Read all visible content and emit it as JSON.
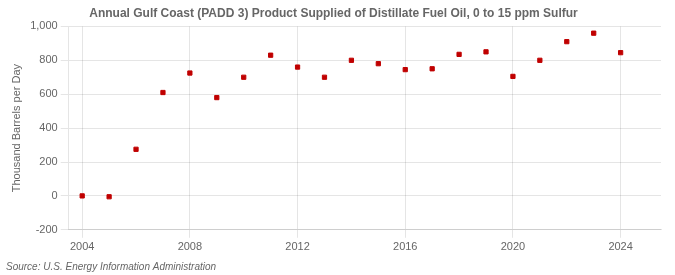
{
  "chart_data": {
    "type": "scatter",
    "title": "Annual Gulf Coast (PADD 3) Product Supplied of Distillate Fuel Oil, 0 to 15 ppm Sulfur",
    "y_label": "Thousand Barrels per Day",
    "annotations": [
      "Source: U.S. Energy Information Administration"
    ],
    "x": [
      2004,
      2005,
      2006,
      2007,
      2008,
      2009,
      2010,
      2011,
      2012,
      2013,
      2014,
      2015,
      2016,
      2017,
      2018,
      2019,
      2020,
      2021,
      2022,
      2023,
      2024
    ],
    "values": [
      0,
      -5,
      275,
      610,
      725,
      580,
      700,
      830,
      760,
      700,
      800,
      780,
      745,
      750,
      835,
      850,
      705,
      800,
      910,
      960,
      845
    ],
    "color": "#C00000",
    "marker": "square",
    "xlim": [
      2003.5,
      2025.5
    ],
    "xticks": [
      2004,
      2008,
      2012,
      2016,
      2020,
      2024
    ],
    "ylim": [
      -200,
      1000
    ],
    "yticks": [
      -200,
      0,
      200,
      400,
      600,
      800,
      {
        "value": 1000,
        "label": "1,000"
      }
    ],
    "grid": true
  }
}
